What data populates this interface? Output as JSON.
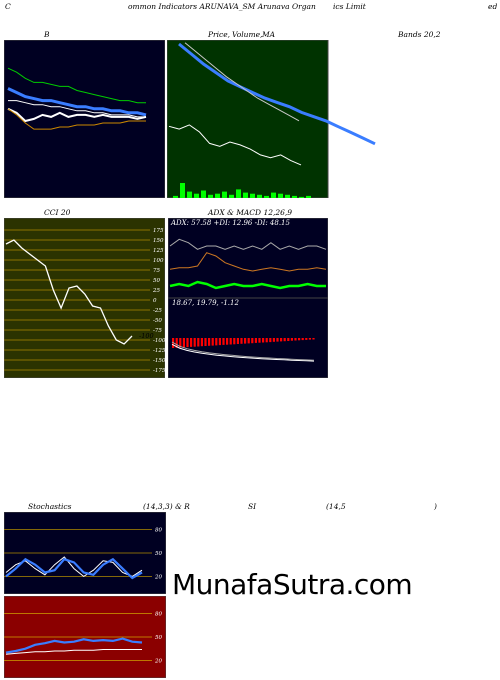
{
  "header": {
    "seg1": "C",
    "seg2": "ommon  Indicators ARUNAVA_SM Arunava  Organ",
    "seg3": "ics Limit",
    "seg4": "ed"
  },
  "panels": {
    "bands_left": "B",
    "price_label": "Price,",
    "volume_label": "Volume,",
    "ma_label": "MA",
    "bands_right": "Bands 20,2",
    "cci_label": "CCI 20",
    "adx_title": "ADX  & MACD 12,26,9",
    "adx_values": "ADX: 57.58  +DI: 12.96  -DI: 48.15",
    "macd_values": "18.67,  19.79,  -1.12",
    "stoch_label": "Stochastics",
    "stoch_params": "(14,3,3) & R",
    "rsi_label": "SI",
    "rsi_params": "(14,5",
    "rsi_close": ")",
    "cci_value": "-100"
  },
  "watermark": "MunafaSutra.com",
  "colors": {
    "dark_panel": "#000022",
    "green_panel": "#003300",
    "olive_panel": "#2b3300",
    "red_panel": "#8b0000",
    "bright_green": "#00ff00",
    "blue_line": "#3a7dff"
  },
  "chart_data": [
    {
      "type": "line",
      "title": "Bands 20,2",
      "series": [
        {
          "values": [
            100,
            98,
            95,
            93,
            93,
            92,
            91,
            91,
            89,
            88,
            87,
            86,
            85,
            84,
            84,
            83,
            83
          ]
        },
        {
          "values": [
            90,
            88,
            86,
            85,
            84,
            84,
            83,
            82,
            81,
            81,
            80,
            80,
            79,
            79,
            78,
            78,
            77
          ]
        },
        {
          "values": [
            84,
            84,
            83,
            82,
            82,
            81,
            81,
            80,
            79,
            79,
            78,
            78,
            77,
            77,
            77,
            76,
            76
          ]
        },
        {
          "values": [
            80,
            78,
            74,
            75,
            77,
            76,
            78,
            76,
            77,
            77,
            76,
            77,
            76,
            76,
            76,
            75,
            76
          ]
        },
        {
          "values": [
            80,
            77,
            73,
            70,
            70,
            70,
            71,
            71,
            72,
            72,
            72,
            73,
            73,
            73,
            74,
            74,
            74
          ]
        }
      ]
    },
    {
      "type": "line",
      "title": "Price, Volume, MA",
      "series": [
        {
          "values": [
            100,
            93,
            86,
            80,
            74,
            70,
            66,
            62,
            59,
            56,
            52,
            49,
            46,
            42,
            38,
            34,
            30
          ]
        },
        {
          "values": [
            98,
            92,
            86,
            80,
            74,
            69,
            64,
            59,
            55,
            51,
            47,
            43
          ]
        },
        {
          "values": [
            42,
            40,
            43,
            38,
            30,
            28,
            31,
            29,
            26,
            22,
            20,
            22,
            18,
            15
          ]
        },
        {
          "values": [
            2,
            14,
            6,
            4,
            7,
            3,
            4,
            6,
            3,
            8,
            5,
            4,
            3,
            2,
            5,
            4,
            3,
            2,
            1,
            2
          ]
        }
      ]
    },
    {
      "type": "line",
      "title": "CCI 20",
      "ylim": [
        -175,
        175
      ],
      "yticks": [
        175,
        150,
        125,
        100,
        75,
        50,
        25,
        0,
        -25,
        -50,
        -75,
        -100,
        -125,
        -150,
        -175
      ],
      "series": [
        {
          "values": [
            140,
            150,
            130,
            115,
            100,
            85,
            25,
            -20,
            30,
            35,
            15,
            -15,
            -20,
            -65,
            -100,
            -110,
            -90
          ]
        }
      ]
    },
    {
      "type": "line",
      "title": "ADX & MACD 12,26,9",
      "series": [
        {
          "name": "ADX",
          "values": [
            57,
            55,
            56,
            58,
            57,
            57,
            58,
            57,
            58,
            57,
            58,
            56,
            58,
            57,
            58,
            57,
            57,
            58
          ]
        },
        {
          "name": "+DI",
          "values": [
            13,
            12,
            13,
            11,
            12,
            14,
            13,
            12,
            13,
            13,
            12,
            13,
            14,
            13,
            13,
            12,
            13,
            13
          ]
        },
        {
          "name": "-DI",
          "values": [
            48,
            47,
            47,
            46,
            38,
            40,
            44,
            46,
            48,
            49,
            48,
            47,
            48,
            49,
            48,
            48,
            47,
            48
          ]
        }
      ]
    },
    {
      "type": "line",
      "title": "Stochastics (14,3,3) & RSI (14,5)",
      "ylim": [
        0,
        100
      ],
      "yticks": [
        80,
        50,
        20
      ],
      "series": [
        {
          "values": [
            25,
            35,
            40,
            30,
            22,
            35,
            45,
            30,
            20,
            28,
            40,
            38,
            25,
            20,
            28
          ]
        },
        {
          "values": [
            20,
            30,
            42,
            35,
            25,
            28,
            42,
            38,
            25,
            22,
            35,
            42,
            30,
            18,
            25
          ]
        }
      ]
    },
    {
      "type": "line",
      "title": "RSI",
      "ylim": [
        0,
        100
      ],
      "yticks": [
        80,
        50,
        20
      ],
      "series": [
        {
          "values": [
            30,
            32,
            35,
            40,
            42,
            45,
            43,
            44,
            47,
            45,
            46,
            45,
            48,
            44,
            43
          ]
        },
        {
          "values": [
            28,
            29,
            30,
            31,
            31,
            32,
            32,
            33,
            33,
            33,
            34,
            34,
            34,
            34,
            34
          ]
        }
      ]
    }
  ]
}
